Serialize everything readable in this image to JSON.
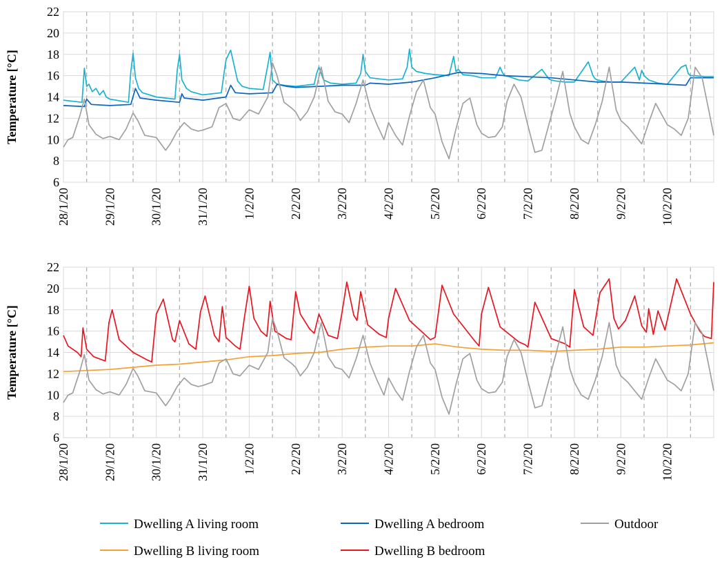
{
  "chart_data": [
    {
      "type": "line",
      "panel": "top",
      "ylabel": "Temperature [°C]",
      "xlabel": "",
      "ylim": [
        6,
        22
      ],
      "yticks": [
        6,
        8,
        10,
        12,
        14,
        16,
        18,
        20,
        22
      ],
      "xlim": [
        0,
        14
      ],
      "xtick_labels": [
        "28/1/20",
        "29/1/20",
        "30/1/20",
        "31/1/20",
        "1/2/20",
        "2/2/20",
        "3/2/20",
        "4/2/20",
        "5/2/20",
        "6/2/20",
        "7/2/20",
        "8/2/20",
        "9/2/20",
        "10/2/20"
      ],
      "grid": true,
      "x_unit": "days since 28/1/20 00:00",
      "series": [
        {
          "name": "Dwelling A living room",
          "color": "#19b2d2",
          "x": [
            0,
            0.4,
            0.45,
            0.5,
            0.55,
            0.62,
            0.7,
            0.78,
            0.86,
            0.92,
            1.0,
            1.4,
            1.45,
            1.5,
            1.55,
            1.62,
            1.7,
            2.0,
            2.4,
            2.45,
            2.5,
            2.55,
            2.65,
            2.75,
            3.0,
            3.4,
            3.45,
            3.5,
            3.6,
            3.75,
            3.85,
            4.0,
            4.3,
            4.4,
            4.45,
            4.5,
            4.6,
            4.75,
            5.0,
            5.4,
            5.45,
            5.5,
            5.6,
            5.75,
            6.0,
            6.3,
            6.4,
            6.45,
            6.5,
            6.6,
            6.8,
            7.0,
            7.3,
            7.4,
            7.45,
            7.5,
            7.6,
            7.8,
            8.0,
            8.3,
            8.4,
            8.45,
            8.5,
            8.6,
            8.8,
            9.0,
            9.3,
            9.4,
            9.45,
            9.5,
            9.6,
            9.8,
            10.0,
            10.3,
            10.4,
            10.45,
            10.5,
            10.6,
            10.8,
            11.0,
            11.3,
            11.4,
            11.45,
            11.5,
            11.6,
            11.8,
            12.0,
            12.3,
            12.4,
            12.45,
            12.5,
            12.6,
            12.8,
            13.0,
            13.3,
            13.4,
            13.45,
            13.5,
            13.6,
            13.8,
            14.0
          ],
          "values": [
            13.7,
            13.5,
            16.7,
            15.0,
            15.2,
            14.5,
            14.8,
            14.2,
            14.6,
            14.0,
            13.8,
            13.5,
            16.4,
            18.1,
            15.8,
            14.8,
            14.4,
            14.0,
            13.8,
            16.5,
            18.0,
            15.6,
            14.8,
            14.5,
            14.2,
            14.4,
            16.0,
            17.5,
            18.4,
            15.5,
            15.0,
            14.8,
            14.7,
            17.0,
            18.2,
            15.6,
            15.2,
            15.1,
            15.0,
            15.2,
            16.2,
            16.8,
            15.6,
            15.3,
            15.2,
            15.3,
            16.2,
            18.0,
            16.4,
            15.8,
            15.7,
            15.6,
            15.7,
            16.8,
            18.5,
            16.8,
            16.4,
            16.2,
            16.1,
            16.0,
            17.8,
            16.4,
            16.6,
            16.1,
            16.0,
            15.8,
            15.8,
            16.8,
            16.3,
            16.0,
            15.9,
            15.6,
            15.5,
            16.6,
            16.0,
            15.7,
            15.6,
            15.5,
            15.4,
            15.4,
            17.3,
            16.0,
            15.7,
            15.6,
            15.5,
            15.4,
            15.4,
            16.8,
            15.6,
            16.5,
            16.0,
            15.6,
            15.3,
            15.2,
            16.8,
            17.0,
            16.2,
            16.0,
            16.0,
            15.9,
            15.9
          ]
        },
        {
          "name": "Dwelling A bedroom",
          "color": "#0a64c0",
          "x": [
            0,
            0.45,
            0.5,
            0.6,
            1.0,
            1.45,
            1.55,
            1.65,
            2.0,
            2.5,
            2.55,
            2.6,
            3.0,
            3.5,
            3.6,
            3.7,
            4.0,
            4.5,
            4.6,
            4.8,
            5.0,
            5.5,
            6.0,
            6.5,
            6.6,
            7.0,
            7.5,
            8.0,
            8.5,
            9.0,
            9.5,
            10.0,
            10.5,
            11.0,
            11.5,
            12.0,
            12.5,
            13.0,
            13.4,
            13.5,
            14.0
          ],
          "values": [
            13.2,
            13.1,
            13.8,
            13.3,
            13.2,
            13.3,
            14.8,
            13.9,
            13.7,
            13.5,
            14.3,
            13.9,
            13.7,
            14.0,
            15.1,
            14.4,
            14.3,
            14.4,
            15.2,
            15.0,
            14.9,
            15.0,
            15.1,
            15.1,
            15.3,
            15.2,
            15.4,
            15.8,
            16.3,
            16.2,
            16.0,
            15.9,
            15.8,
            15.6,
            15.4,
            15.4,
            15.3,
            15.2,
            15.1,
            15.8,
            15.8
          ]
        },
        {
          "name": "Outdoor",
          "color": "#a0a0a0",
          "x": [
            0,
            0.1,
            0.2,
            0.35,
            0.45,
            0.55,
            0.7,
            0.85,
            1.0,
            1.2,
            1.35,
            1.5,
            1.6,
            1.75,
            2.0,
            2.2,
            2.3,
            2.45,
            2.6,
            2.75,
            2.9,
            3.0,
            3.2,
            3.35,
            3.5,
            3.65,
            3.8,
            4.0,
            4.2,
            4.4,
            4.5,
            4.6,
            4.75,
            4.9,
            5.0,
            5.1,
            5.25,
            5.4,
            5.55,
            5.7,
            5.85,
            6.0,
            6.15,
            6.3,
            6.45,
            6.6,
            6.75,
            6.9,
            7.0,
            7.15,
            7.3,
            7.45,
            7.6,
            7.75,
            7.9,
            8.0,
            8.15,
            8.3,
            8.45,
            8.6,
            8.75,
            8.9,
            9.0,
            9.15,
            9.3,
            9.45,
            9.55,
            9.7,
            9.85,
            10.0,
            10.15,
            10.3,
            10.45,
            10.6,
            10.75,
            10.9,
            11.0,
            11.15,
            11.3,
            11.45,
            11.6,
            11.75,
            11.9,
            12.0,
            12.15,
            12.3,
            12.45,
            12.6,
            12.75,
            12.9,
            13.0,
            13.15,
            13.3,
            13.45,
            13.6,
            13.75,
            13.9,
            14.0
          ],
          "values": [
            9.3,
            10.0,
            10.2,
            12.2,
            13.8,
            11.4,
            10.5,
            10.1,
            10.3,
            10.0,
            11.0,
            12.5,
            11.8,
            10.4,
            10.2,
            9.0,
            9.6,
            10.8,
            11.6,
            11.0,
            10.8,
            10.9,
            11.2,
            13.0,
            13.4,
            12.0,
            11.8,
            12.8,
            12.4,
            14.0,
            17.2,
            16.0,
            13.5,
            13.0,
            12.6,
            11.8,
            12.6,
            14.0,
            16.8,
            13.6,
            12.6,
            12.4,
            11.6,
            13.4,
            15.6,
            13.0,
            11.4,
            10.0,
            11.6,
            10.4,
            9.5,
            12.2,
            14.5,
            15.6,
            13.0,
            12.4,
            9.8,
            8.2,
            11.0,
            13.4,
            13.9,
            11.4,
            10.6,
            10.2,
            10.3,
            11.2,
            13.6,
            15.2,
            14.0,
            11.3,
            8.8,
            9.0,
            11.4,
            13.8,
            16.4,
            12.5,
            11.2,
            10.0,
            9.6,
            11.4,
            13.6,
            16.8,
            12.8,
            11.8,
            11.2,
            10.4,
            9.6,
            11.6,
            13.4,
            12.2,
            11.4,
            11.0,
            10.4,
            12.0,
            16.8,
            15.8,
            12.6,
            10.4
          ]
        }
      ]
    },
    {
      "type": "line",
      "panel": "bottom",
      "ylabel": "Temperature [°C]",
      "xlabel": "",
      "ylim": [
        6,
        22
      ],
      "yticks": [
        6,
        8,
        10,
        12,
        14,
        16,
        18,
        20,
        22
      ],
      "xlim": [
        0,
        14
      ],
      "xtick_labels": [
        "28/1/20",
        "29/1/20",
        "30/1/20",
        "31/1/20",
        "1/2/20",
        "2/2/20",
        "3/2/20",
        "4/2/20",
        "5/2/20",
        "6/2/20",
        "7/2/20",
        "8/2/20",
        "9/2/20",
        "10/2/20"
      ],
      "grid": true,
      "x_unit": "days since 28/1/20 00:00",
      "series": [
        {
          "name": "Dwelling B living room",
          "color": "#f5a030",
          "x": [
            0,
            0.5,
            1.0,
            1.5,
            2.0,
            2.5,
            3.0,
            3.5,
            4.0,
            4.5,
            5.0,
            5.5,
            6.0,
            6.5,
            7.0,
            7.5,
            8.0,
            8.5,
            9.0,
            9.5,
            10.0,
            10.5,
            11.0,
            11.5,
            12.0,
            12.5,
            13.0,
            13.5,
            14.0
          ],
          "values": [
            12.2,
            12.3,
            12.4,
            12.6,
            12.8,
            12.9,
            13.1,
            13.3,
            13.6,
            13.7,
            13.9,
            14.0,
            14.3,
            14.5,
            14.6,
            14.6,
            14.8,
            14.5,
            14.3,
            14.2,
            14.2,
            14.1,
            14.2,
            14.3,
            14.5,
            14.5,
            14.6,
            14.7,
            14.9
          ]
        },
        {
          "name": "Dwelling B bedroom",
          "color": "#e8141e",
          "x": [
            0,
            0.1,
            0.3,
            0.38,
            0.42,
            0.5,
            0.65,
            0.9,
            0.98,
            1.05,
            1.2,
            1.5,
            1.8,
            1.9,
            2.0,
            2.15,
            2.35,
            2.4,
            2.5,
            2.7,
            2.85,
            2.95,
            3.05,
            3.25,
            3.35,
            3.42,
            3.5,
            3.7,
            3.8,
            3.9,
            4.0,
            4.1,
            4.25,
            4.38,
            4.45,
            4.55,
            4.8,
            4.9,
            5.0,
            5.1,
            5.3,
            5.4,
            5.5,
            5.7,
            5.9,
            6.0,
            6.1,
            6.25,
            6.32,
            6.4,
            6.55,
            6.8,
            6.95,
            7.0,
            7.15,
            7.45,
            7.8,
            7.9,
            8.0,
            8.15,
            8.4,
            8.85,
            8.95,
            9.0,
            9.15,
            9.4,
            9.8,
            9.95,
            10.0,
            10.15,
            10.5,
            10.8,
            10.9,
            11.0,
            11.2,
            11.4,
            11.55,
            11.75,
            11.85,
            11.95,
            12.1,
            12.3,
            12.45,
            12.55,
            12.6,
            12.7,
            12.8,
            12.95,
            13.2,
            13.5,
            13.7,
            13.8,
            13.95,
            14.0
          ],
          "values": [
            15.6,
            14.6,
            14.0,
            13.6,
            16.3,
            14.3,
            13.6,
            13.2,
            16.8,
            18.0,
            15.2,
            14.0,
            13.3,
            13.1,
            17.6,
            19.0,
            15.2,
            15.0,
            17.0,
            14.8,
            14.3,
            17.8,
            19.3,
            15.6,
            15.0,
            18.3,
            15.4,
            14.6,
            14.3,
            17.4,
            20.2,
            17.2,
            16.0,
            15.5,
            18.8,
            16.0,
            15.3,
            15.2,
            19.7,
            17.6,
            16.2,
            15.8,
            17.6,
            15.6,
            15.3,
            17.8,
            20.6,
            17.5,
            17.0,
            19.7,
            16.6,
            15.7,
            15.4,
            17.2,
            20.0,
            17.0,
            15.6,
            15.2,
            15.4,
            20.3,
            17.6,
            15.1,
            14.6,
            17.6,
            20.1,
            16.4,
            15.0,
            14.7,
            14.5,
            18.7,
            15.3,
            14.8,
            14.5,
            19.9,
            16.4,
            15.6,
            19.6,
            20.9,
            17.2,
            16.2,
            17.0,
            19.3,
            16.5,
            15.9,
            18.1,
            15.7,
            17.9,
            16.1,
            20.9,
            17.6,
            16.0,
            15.5,
            15.3,
            20.6
          ]
        },
        {
          "name": "Outdoor",
          "color": "#a0a0a0",
          "x": [
            0,
            0.1,
            0.2,
            0.35,
            0.45,
            0.55,
            0.7,
            0.85,
            1.0,
            1.2,
            1.35,
            1.5,
            1.6,
            1.75,
            2.0,
            2.2,
            2.3,
            2.45,
            2.6,
            2.75,
            2.9,
            3.0,
            3.2,
            3.35,
            3.5,
            3.65,
            3.8,
            4.0,
            4.2,
            4.4,
            4.5,
            4.6,
            4.75,
            4.9,
            5.0,
            5.1,
            5.25,
            5.4,
            5.55,
            5.7,
            5.85,
            6.0,
            6.15,
            6.3,
            6.45,
            6.6,
            6.75,
            6.9,
            7.0,
            7.15,
            7.3,
            7.45,
            7.6,
            7.75,
            7.9,
            8.0,
            8.15,
            8.3,
            8.45,
            8.6,
            8.75,
            8.9,
            9.0,
            9.15,
            9.3,
            9.45,
            9.55,
            9.7,
            9.85,
            10.0,
            10.15,
            10.3,
            10.45,
            10.6,
            10.75,
            10.9,
            11.0,
            11.15,
            11.3,
            11.45,
            11.6,
            11.75,
            11.9,
            12.0,
            12.15,
            12.3,
            12.45,
            12.6,
            12.75,
            12.9,
            13.0,
            13.15,
            13.3,
            13.45,
            13.6,
            13.75,
            13.9,
            14.0
          ],
          "values": [
            9.3,
            10.0,
            10.2,
            12.2,
            13.8,
            11.4,
            10.5,
            10.1,
            10.3,
            10.0,
            11.0,
            12.5,
            11.8,
            10.4,
            10.2,
            9.0,
            9.6,
            10.8,
            11.6,
            11.0,
            10.8,
            10.9,
            11.2,
            13.0,
            13.4,
            12.0,
            11.8,
            12.8,
            12.4,
            14.0,
            17.2,
            16.0,
            13.5,
            13.0,
            12.6,
            11.8,
            12.6,
            14.0,
            16.8,
            13.6,
            12.6,
            12.4,
            11.6,
            13.4,
            15.6,
            13.0,
            11.4,
            10.0,
            11.6,
            10.4,
            9.5,
            12.2,
            14.5,
            15.6,
            13.0,
            12.4,
            9.8,
            8.2,
            11.0,
            13.4,
            13.9,
            11.4,
            10.6,
            10.2,
            10.3,
            11.2,
            13.6,
            15.2,
            14.0,
            11.3,
            8.8,
            9.0,
            11.4,
            13.8,
            16.4,
            12.5,
            11.2,
            10.0,
            9.6,
            11.4,
            13.6,
            16.8,
            12.8,
            11.8,
            11.2,
            10.4,
            9.6,
            11.6,
            13.4,
            12.2,
            11.4,
            11.0,
            10.4,
            12.0,
            16.8,
            15.8,
            12.6,
            10.4
          ]
        }
      ]
    }
  ],
  "legend": {
    "position": "bottom",
    "items": [
      {
        "label": "Dwelling A living room",
        "color": "#19b2d2"
      },
      {
        "label": "Dwelling A bedroom",
        "color": "#0a64c0"
      },
      {
        "label": "Outdoor",
        "color": "#a0a0a0"
      },
      {
        "label": "Dwelling B living room",
        "color": "#f5a030"
      },
      {
        "label": "Dwelling B bedroom",
        "color": "#e8141e"
      }
    ]
  }
}
